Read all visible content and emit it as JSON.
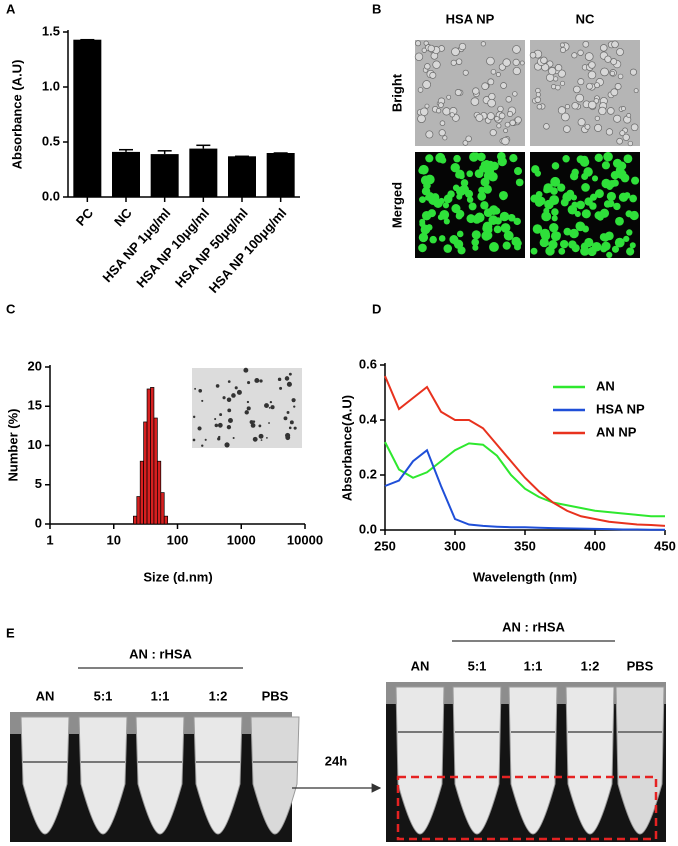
{
  "chart_data": [
    {
      "type": "bar",
      "label": "A",
      "y_label": "Absorbance (A.U)",
      "categories": [
        "PC",
        "NC",
        "HSA NP 1μg/ml",
        "HSA NP 10μg/ml",
        "HSA NP 50μg/ml",
        "HSA NP 100μg/ml"
      ],
      "values": [
        1.43,
        0.41,
        0.39,
        0.44,
        0.37,
        0.4
      ],
      "errors": [
        0,
        0.02,
        0.03,
        0.03,
        0,
        0
      ],
      "color": "#000000",
      "ylim": [
        0,
        1.5
      ],
      "yticks": [
        {
          "value": 0,
          "label": "0.0"
        },
        0.5,
        {
          "value": 1,
          "label": "1.0"
        },
        1.5
      ]
    },
    {
      "type": "histogram",
      "label": "C",
      "y_label": "Number (%)",
      "x_label": "Size (d.nm)",
      "bins": [
        20.3,
        23.0,
        26.0,
        29.4,
        33.3,
        37.7,
        42.7,
        48.3,
        54.7,
        61.9,
        70.1
      ],
      "counts": [
        1,
        3.5,
        8,
        13,
        17.2,
        17.4,
        13.5,
        8,
        4,
        1
      ],
      "color": "#d62020",
      "xscale": "log",
      "xlim": [
        1,
        10000
      ],
      "xticks": [
        1,
        10,
        100,
        1000,
        10000
      ],
      "ylim": [
        0,
        20
      ],
      "yticks": [
        0,
        5,
        10,
        15,
        20
      ]
    },
    {
      "type": "line",
      "label": "D",
      "y_label": "Absorbance(A.U)",
      "x_label": "Wavelength (nm)",
      "x": [
        250,
        260,
        270,
        280,
        290,
        300,
        310,
        320,
        330,
        340,
        350,
        360,
        370,
        380,
        390,
        400,
        410,
        420,
        430,
        440,
        450
      ],
      "series": [
        {
          "name": "AN",
          "color": "#2ee82e",
          "values": [
            0.32,
            0.22,
            0.19,
            0.21,
            0.25,
            0.29,
            0.315,
            0.31,
            0.27,
            0.2,
            0.15,
            0.12,
            0.1,
            0.09,
            0.08,
            0.07,
            0.065,
            0.06,
            0.055,
            0.05,
            0.05
          ]
        },
        {
          "name": "HSA NP",
          "color": "#1f4fd8",
          "values": [
            0.16,
            0.18,
            0.25,
            0.29,
            0.16,
            0.04,
            0.02,
            0.015,
            0.012,
            0.01,
            0.01,
            0.008,
            0.007,
            0.006,
            0.005,
            0.004,
            0.003,
            0.002,
            0.002,
            0.001,
            0.001
          ]
        },
        {
          "name": "AN NP",
          "color": "#e8321e",
          "values": [
            0.56,
            0.44,
            0.48,
            0.52,
            0.43,
            0.4,
            0.4,
            0.37,
            0.31,
            0.25,
            0.19,
            0.14,
            0.1,
            0.07,
            0.05,
            0.04,
            0.03,
            0.025,
            0.02,
            0.018,
            0.015
          ]
        }
      ],
      "xlim": [
        250,
        450
      ],
      "xticks": [
        250,
        300,
        350,
        400,
        450
      ],
      "ylim": [
        0,
        0.6
      ],
      "yticks": [
        {
          "value": 0,
          "label": "0.0"
        },
        0.2,
        0.4,
        0.6
      ],
      "legend": "upper-right"
    }
  ],
  "panel_b": {
    "label": "B",
    "columns": [
      "HSA NP",
      "NC"
    ],
    "rows": [
      "Bright",
      "Merged"
    ]
  },
  "panel_e": {
    "label": "E",
    "arrow": "24h",
    "groups": [
      {
        "header": "AN : rHSA",
        "tubes": [
          "AN",
          "5:1",
          "1:1",
          "1:2",
          "PBS"
        ]
      },
      {
        "header": "AN : rHSA",
        "tubes": [
          "AN",
          "5:1",
          "1:1",
          "1:2",
          "PBS"
        ]
      }
    ]
  }
}
